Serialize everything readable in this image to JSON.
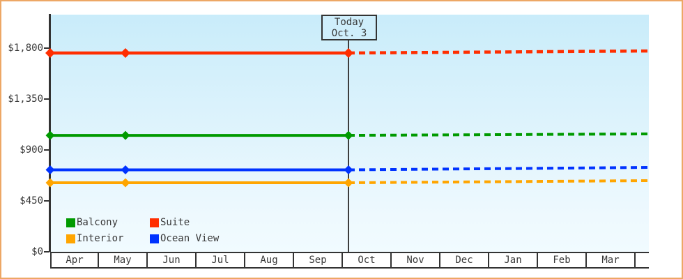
{
  "frame": {
    "border_color": "#eda765",
    "background": "#ffffff"
  },
  "plot": {
    "bg_top": "#c9ecfa",
    "bg_bottom": "#f1fbff",
    "axis_color": "#333333",
    "text_color": "#383838"
  },
  "today_marker": {
    "line1": "Today",
    "line2": "Oct. 3"
  },
  "y_axis": {
    "ticks": [
      {
        "label": "$1,800",
        "value": 1800
      },
      {
        "label": "$1,350",
        "value": 1350
      },
      {
        "label": "$900",
        "value": 900
      },
      {
        "label": "$450",
        "value": 450
      },
      {
        "label": "$0",
        "value": 0
      }
    ]
  },
  "x_axis": {
    "months": [
      "Apr",
      "May",
      "Jun",
      "Jul",
      "Aug",
      "Sep",
      "Oct",
      "Nov",
      "Dec",
      "Jan",
      "Feb",
      "Mar"
    ]
  },
  "legend": {
    "items": [
      {
        "label": "Balcony",
        "color": "#009a00"
      },
      {
        "label": "Suite",
        "color": "#ff2e00"
      },
      {
        "label": "Interior",
        "color": "#ffa500"
      },
      {
        "label": "Ocean View",
        "color": "#0033ff"
      }
    ]
  },
  "chart_data": {
    "type": "line",
    "title": "",
    "x_categories": [
      "Apr",
      "May",
      "Jun",
      "Jul",
      "Aug",
      "Sep",
      "Oct",
      "Nov",
      "Dec",
      "Jan",
      "Feb",
      "Mar"
    ],
    "observed_x": [
      "Apr (start)",
      "mid-May",
      "Oct 3 (today)"
    ],
    "today_annotation": {
      "label": "Today",
      "date": "Oct. 3",
      "month": "Oct",
      "day": 3
    },
    "ylim": [
      0,
      1965
    ],
    "y_ticks": [
      0,
      450,
      900,
      1350,
      1800
    ],
    "grid": false,
    "legend_position": "bottom-left",
    "forecast_style": "dashed",
    "series": [
      {
        "name": "Suite",
        "color": "#ff2e00",
        "values": [
          1757,
          1757,
          1757
        ],
        "forecast_end_value": 1775
      },
      {
        "name": "Balcony",
        "color": "#009a00",
        "values": [
          1029,
          1029,
          1029
        ],
        "forecast_end_value": 1042
      },
      {
        "name": "Ocean View",
        "color": "#0033ff",
        "values": [
          724,
          724,
          724
        ],
        "forecast_end_value": 746
      },
      {
        "name": "Interior",
        "color": "#ffa500",
        "values": [
          610,
          610,
          610
        ],
        "forecast_end_value": 629
      }
    ]
  }
}
